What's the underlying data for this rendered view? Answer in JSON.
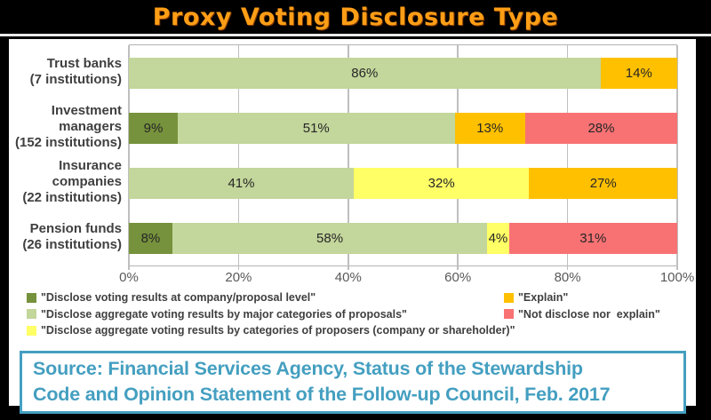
{
  "header": {
    "title": "Proxy Voting Disclosure Type"
  },
  "chart_data": {
    "type": "bar",
    "orientation": "horizontal",
    "stacked": true,
    "xlim": [
      0,
      100
    ],
    "x_ticks": [
      "0%",
      "20%",
      "40%",
      "60%",
      "80%",
      "100%"
    ],
    "grid": true,
    "legend_position": "bottom",
    "data_label_suffix": "%",
    "categories": [
      {
        "lines": [
          "Trust banks",
          "(7 institutions)"
        ]
      },
      {
        "lines": [
          "Investment",
          "managers",
          "(152 institutions)"
        ]
      },
      {
        "lines": [
          "Insurance",
          "companies",
          "(22 institutions)"
        ]
      },
      {
        "lines": [
          "Pension funds",
          "(26 institutions)"
        ]
      }
    ],
    "series": [
      {
        "name": "\"Disclose voting results at company/proposal level\"",
        "color": "#76923c",
        "legend_column": "left",
        "values": [
          0,
          9,
          0,
          8
        ]
      },
      {
        "name": "\"Disclose aggregate voting results by major categories of proposals\"",
        "color": "#c3d69b",
        "legend_column": "left",
        "values": [
          86,
          51,
          41,
          58
        ]
      },
      {
        "name": "\"Disclose aggregate voting results by categories of proposers (company or shareholder)\"",
        "color": "#ffff66",
        "legend_column": "left",
        "values": [
          0,
          0,
          32,
          4
        ]
      },
      {
        "name": "\"Explain\"",
        "color": "#ffc000",
        "legend_column": "right",
        "values": [
          14,
          13,
          27,
          0
        ]
      },
      {
        "name": "\"Not disclose nor  explain\"",
        "color": "#f87274",
        "legend_column": "right",
        "values": [
          0,
          28,
          0,
          31
        ]
      }
    ]
  },
  "source_box": {
    "line1": "Source: Financial Services Agency, Status of the Stewardship",
    "line2": "Code and Opinion Statement of the Follow-up Council, Feb. 2017"
  },
  "colors": {
    "title_text": "#ff9e16",
    "header_bg": "#000000",
    "frame_bg": "#ffffff",
    "source_teal": "#449fc0",
    "grid": "#bfbfbf",
    "label_text": "#3f3f3f"
  }
}
